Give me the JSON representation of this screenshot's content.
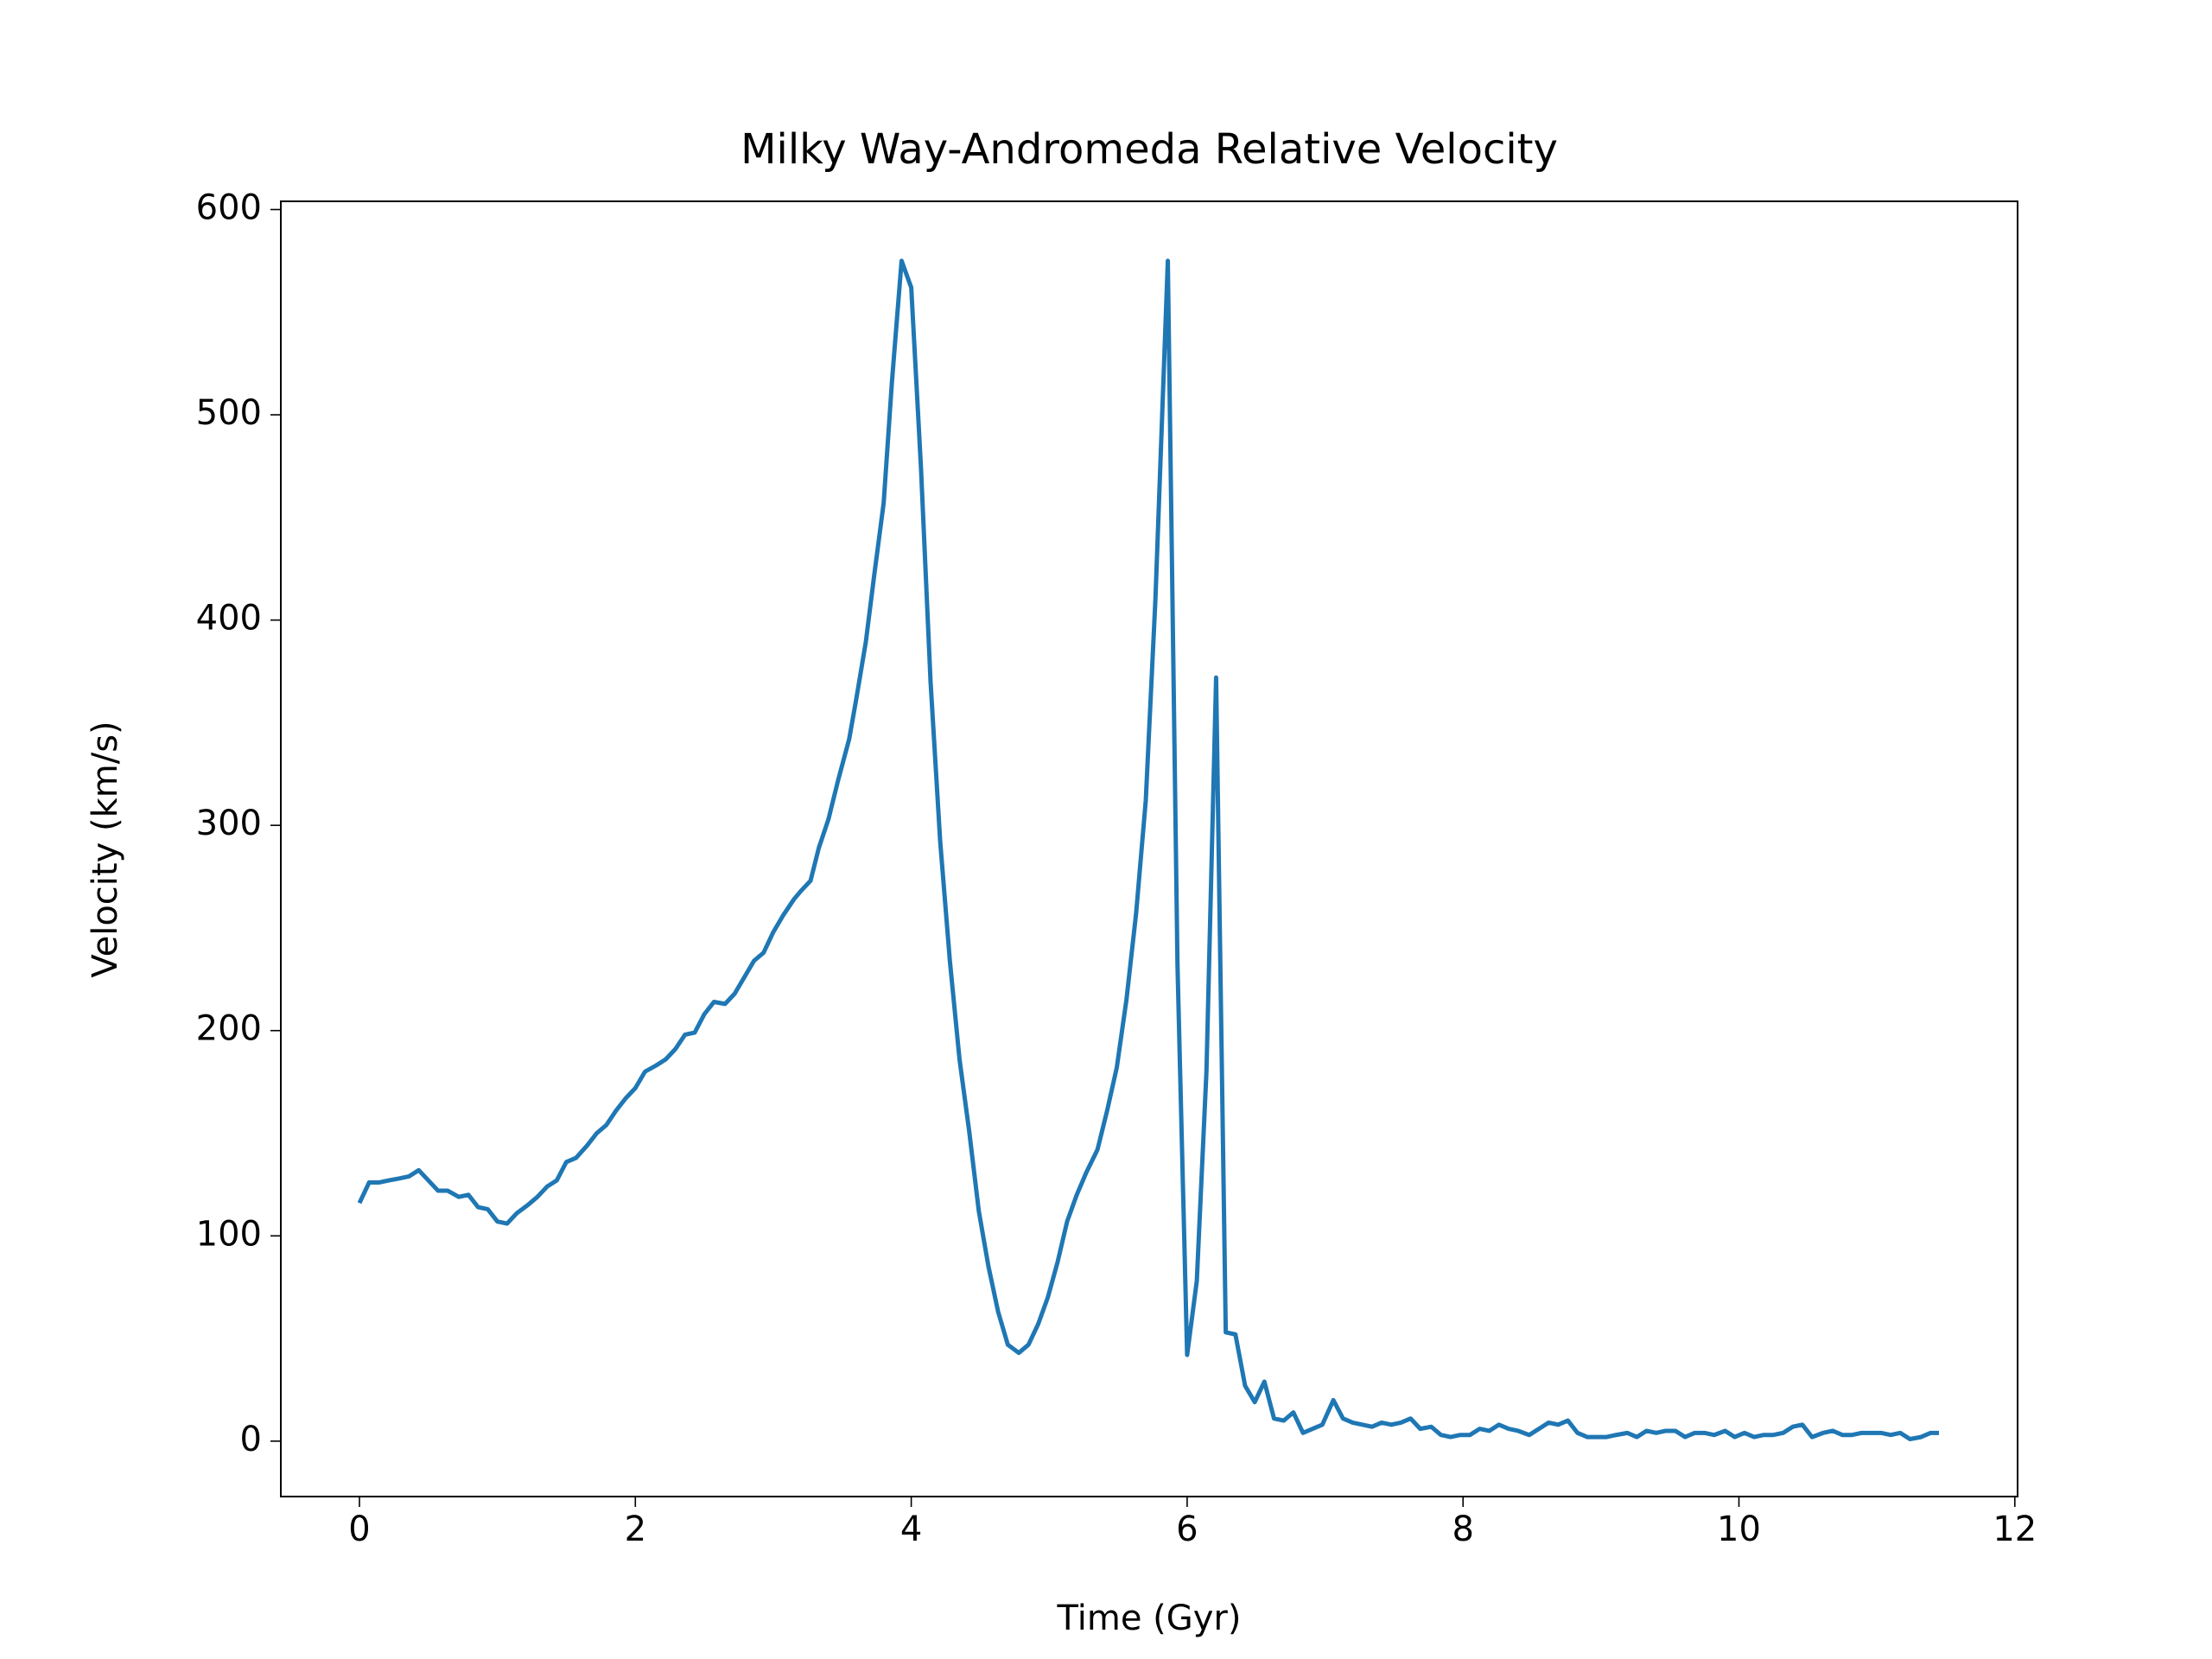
{
  "chart_data": {
    "type": "line",
    "title": "Milky Way-Andromeda Relative Velocity",
    "x_label": "Time (Gyr)",
    "y_label": "Velocity (km/s)",
    "xlim": [
      -0.57,
      12.02
    ],
    "xticks": [
      0,
      2,
      4,
      6,
      8,
      10,
      12
    ],
    "ylim": [
      -27,
      604
    ],
    "yticks": [
      0,
      100,
      200,
      300,
      400,
      500,
      600
    ],
    "grid": false,
    "x": [
      0,
      0.07,
      0.14,
      0.21,
      0.29,
      0.36,
      0.43,
      0.5,
      0.57,
      0.64,
      0.72,
      0.79,
      0.86,
      0.93,
      1.0,
      1.07,
      1.14,
      1.22,
      1.29,
      1.36,
      1.43,
      1.5,
      1.57,
      1.65,
      1.72,
      1.79,
      1.86,
      1.93,
      2.0,
      2.07,
      2.15,
      2.22,
      2.29,
      2.36,
      2.43,
      2.5,
      2.57,
      2.65,
      2.72,
      2.79,
      2.86,
      2.93,
      3.0,
      3.07,
      3.15,
      3.2,
      3.27,
      3.33,
      3.4,
      3.47,
      3.55,
      3.6,
      3.67,
      3.73,
      3.8,
      3.86,
      3.93,
      4.0,
      4.07,
      4.14,
      4.21,
      4.28,
      4.35,
      4.42,
      4.49,
      4.56,
      4.63,
      4.7,
      4.78,
      4.85,
      4.92,
      4.99,
      5.06,
      5.13,
      5.2,
      5.27,
      5.35,
      5.42,
      5.49,
      5.56,
      5.63,
      5.7,
      5.77,
      5.86,
      5.93,
      6.0,
      6.07,
      6.14,
      6.21,
      6.28,
      6.35,
      6.42,
      6.49,
      6.56,
      6.63,
      6.7,
      6.77,
      6.84,
      6.91,
      6.98,
      7.06,
      7.13,
      7.2,
      7.27,
      7.34,
      7.41,
      7.48,
      7.55,
      7.62,
      7.69,
      7.77,
      7.84,
      7.91,
      7.98,
      8.05,
      8.12,
      8.19,
      8.26,
      8.33,
      8.4,
      8.48,
      8.55,
      8.62,
      8.69,
      8.76,
      8.83,
      8.9,
      8.97,
      9.04,
      9.11,
      9.19,
      9.26,
      9.33,
      9.4,
      9.47,
      9.54,
      9.61,
      9.68,
      9.75,
      9.82,
      9.9,
      9.97,
      10.04,
      10.11,
      10.18,
      10.25,
      10.32,
      10.39,
      10.46,
      10.53,
      10.61,
      10.68,
      10.75,
      10.82,
      10.89,
      10.96,
      11.03,
      11.1,
      11.17,
      11.24,
      11.32,
      11.39,
      11.45
    ],
    "series": [
      {
        "color": "#1f77b4",
        "values": [
          116,
          126,
          126,
          127,
          128,
          129,
          132,
          127,
          122,
          122,
          119,
          120,
          114,
          113,
          107,
          106,
          111,
          115,
          119,
          124,
          127,
          136,
          138,
          144,
          150,
          154,
          161,
          167,
          172,
          180,
          183,
          186,
          191,
          198,
          199,
          208,
          214,
          213,
          218,
          226,
          234,
          238,
          248,
          256,
          264,
          268,
          273,
          289,
          303,
          322,
          342,
          361,
          389,
          421,
          457,
          516,
          575,
          562,
          475,
          370,
          292,
          234,
          186,
          151,
          112,
          85,
          63,
          47,
          43,
          47,
          57,
          70,
          87,
          107,
          120,
          131,
          142,
          161,
          182,
          215,
          257,
          312,
          410,
          575,
          232,
          42,
          78,
          180,
          372,
          53,
          52,
          27,
          19,
          29,
          11,
          10,
          14,
          4,
          6,
          8,
          20,
          11,
          9,
          8,
          7,
          9,
          8,
          9,
          11,
          6,
          7,
          3,
          2,
          3,
          3,
          6,
          5,
          8,
          6,
          5,
          3,
          6,
          9,
          8,
          10,
          4,
          2,
          2,
          2,
          3,
          4,
          2,
          5,
          4,
          5,
          5,
          2,
          4,
          4,
          3,
          5,
          2,
          4,
          2,
          3,
          3,
          4,
          7,
          8,
          2,
          4,
          5,
          3,
          3,
          4,
          4,
          4,
          3,
          4,
          1,
          2,
          4,
          4
        ]
      }
    ]
  }
}
